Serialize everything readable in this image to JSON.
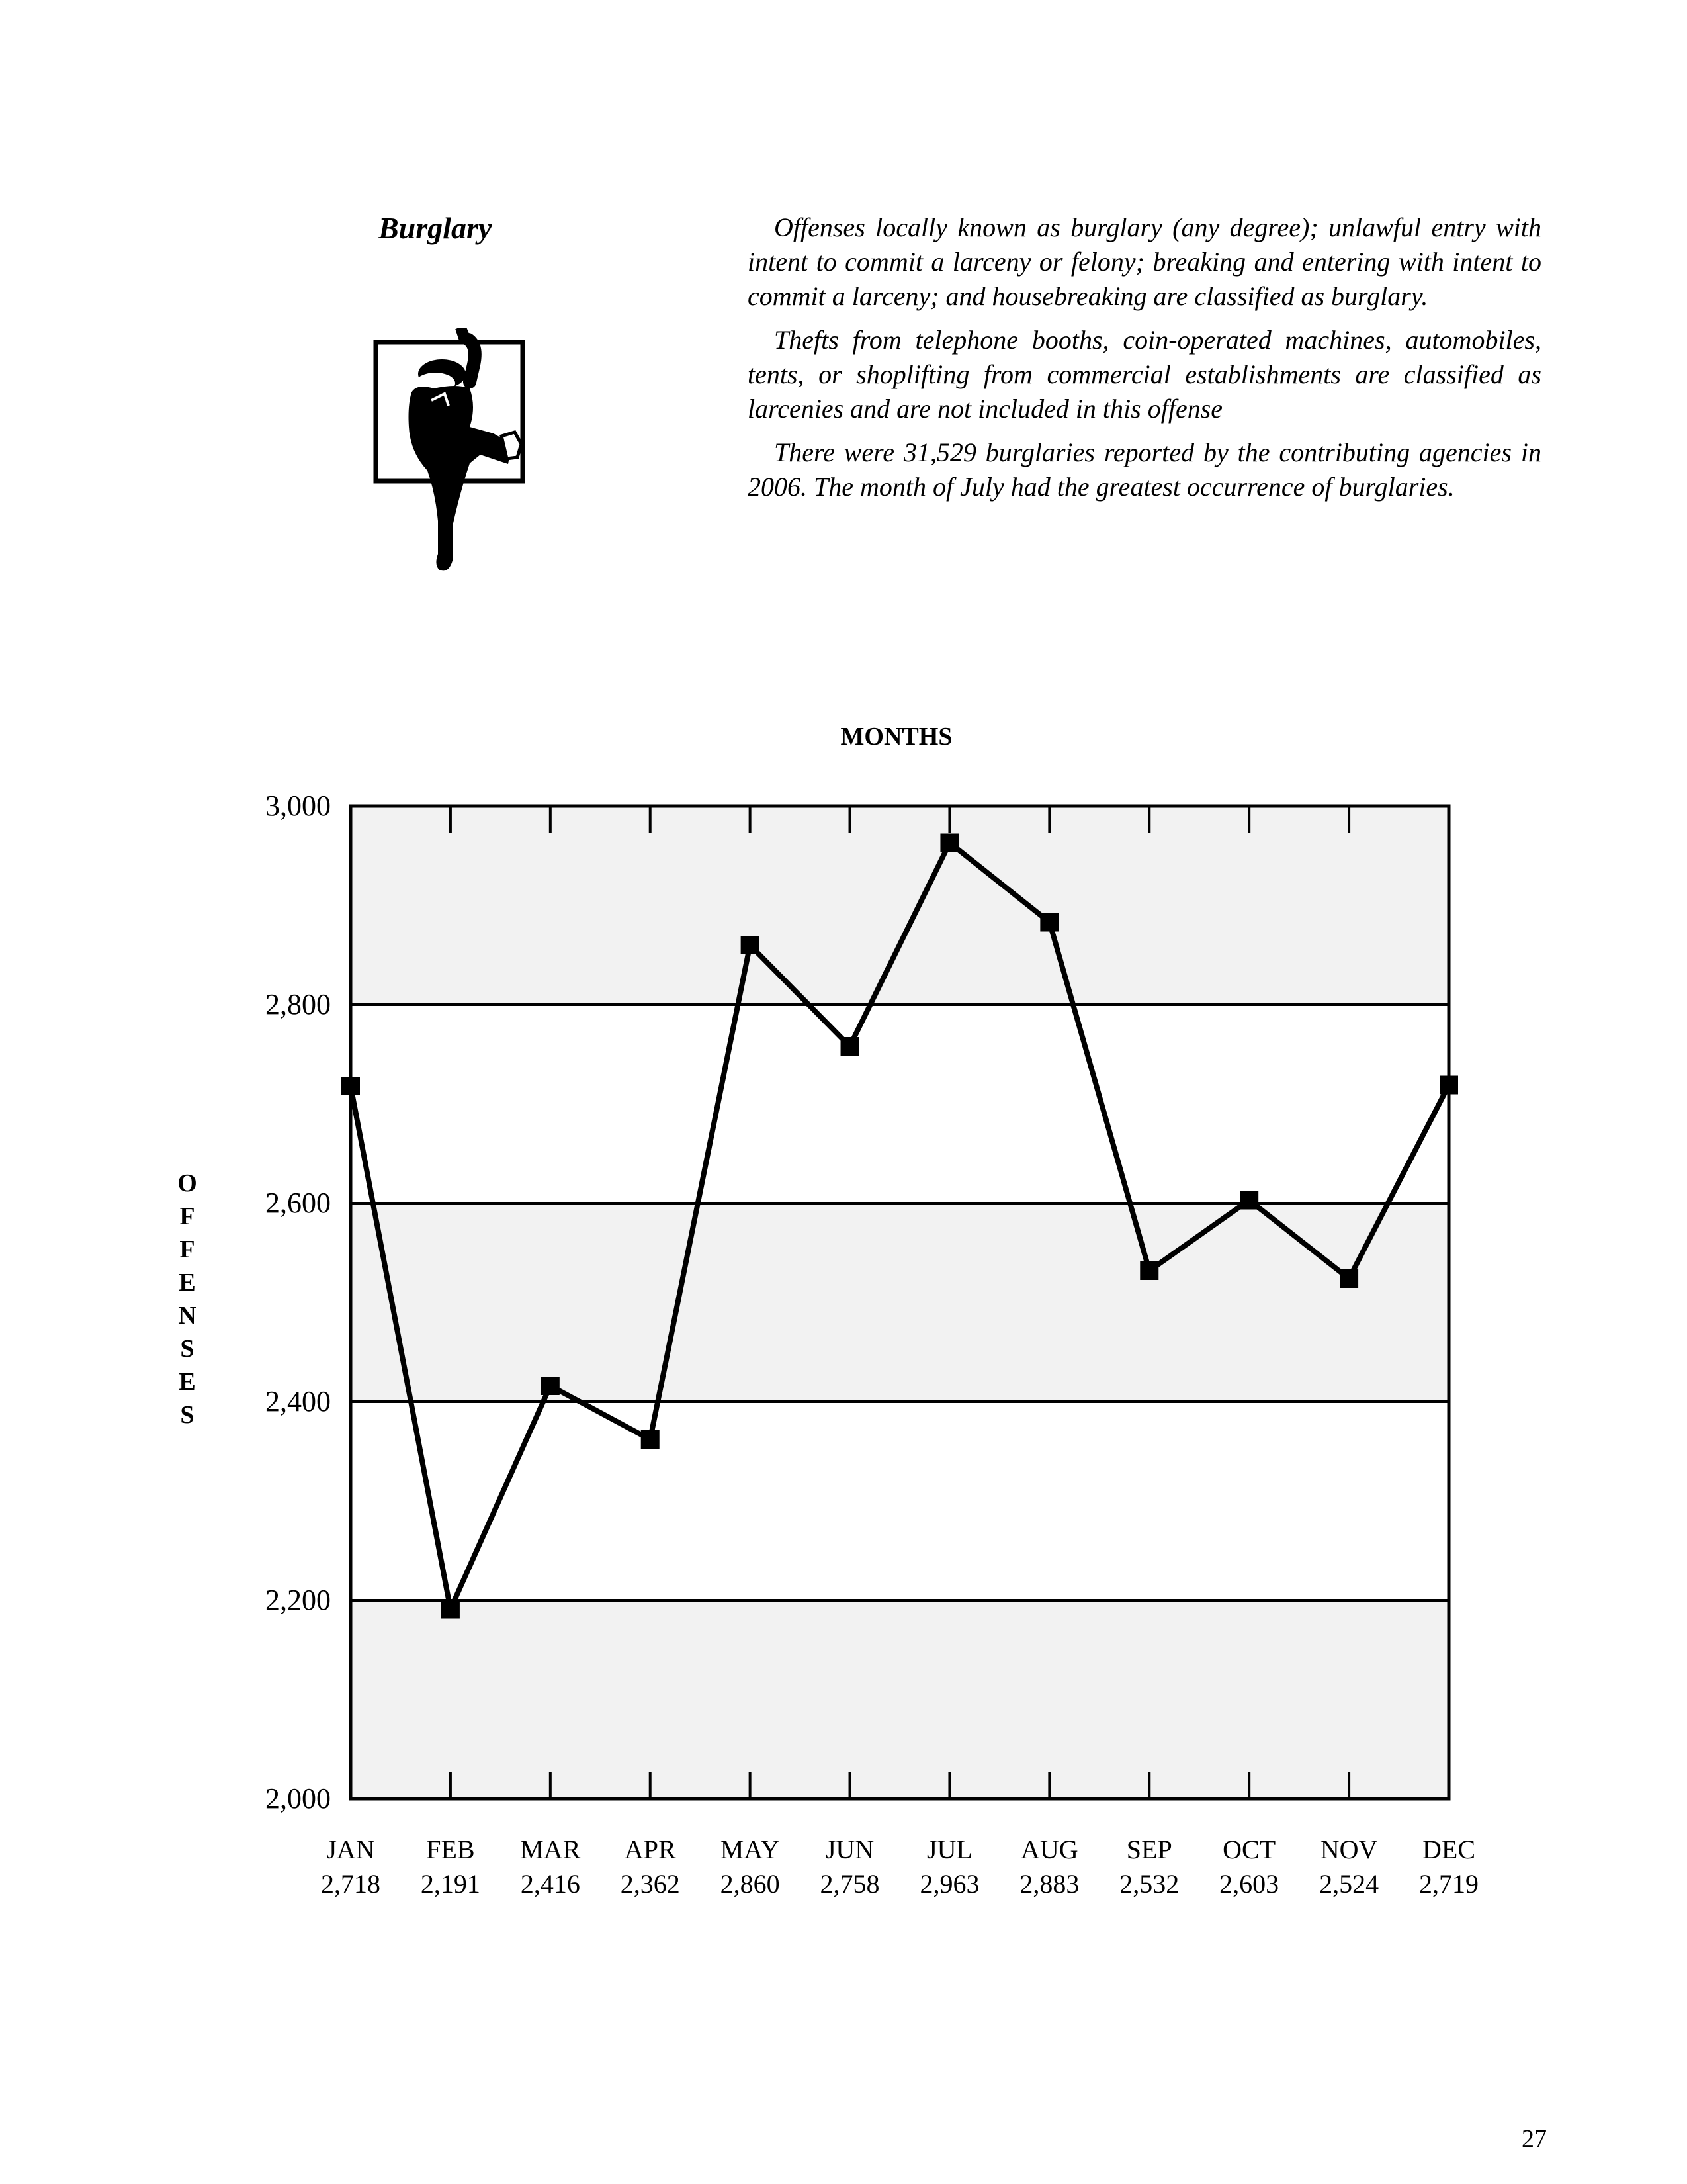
{
  "page": {
    "section_title": "Burglary",
    "paragraphs": [
      "Offenses locally known as burglary (any degree); unlawful entry with intent to commit a larceny or felony; breaking and entering with intent to commit a larceny; and housebreaking are classified as burglary.",
      "Thefts from telephone booths, coin-operated machines, automobiles, tents, or shoplifting from commercial establishments are classified as larcenies and are not included in this offense",
      "There were 31,529 burglaries reported by the contributing agencies in 2006.  The month of July had the greatest occurrence of burglaries."
    ],
    "icon": "burglar-climbing-through-window-icon",
    "page_number": "27"
  },
  "chart_data": {
    "type": "line",
    "title": "MONTHS",
    "ylabel": "OFFENSES",
    "xlabel": "",
    "categories": [
      "JAN",
      "FEB",
      "MAR",
      "APR",
      "MAY",
      "JUN",
      "JUL",
      "AUG",
      "SEP",
      "OCT",
      "NOV",
      "DEC"
    ],
    "value_labels": [
      "2,718",
      "2,191",
      "2,416",
      "2,362",
      "2,860",
      "2,758",
      "2,963",
      "2,883",
      "2,532",
      "2,603",
      "2,524",
      "2,719"
    ],
    "values": [
      2718,
      2191,
      2416,
      2362,
      2860,
      2758,
      2963,
      2883,
      2532,
      2603,
      2524,
      2719
    ],
    "ylim": [
      2000,
      3000
    ],
    "yticks": [
      2000,
      2200,
      2400,
      2600,
      2800,
      3000
    ],
    "ytick_labels": [
      "2,000",
      "2,200",
      "2,400",
      "2,600",
      "2,800",
      "3,000"
    ],
    "grid": true,
    "marker": "square",
    "colors": {
      "line": "#000000",
      "band_shaded": "#f2f2f2",
      "band_plain": "#ffffff"
    }
  }
}
